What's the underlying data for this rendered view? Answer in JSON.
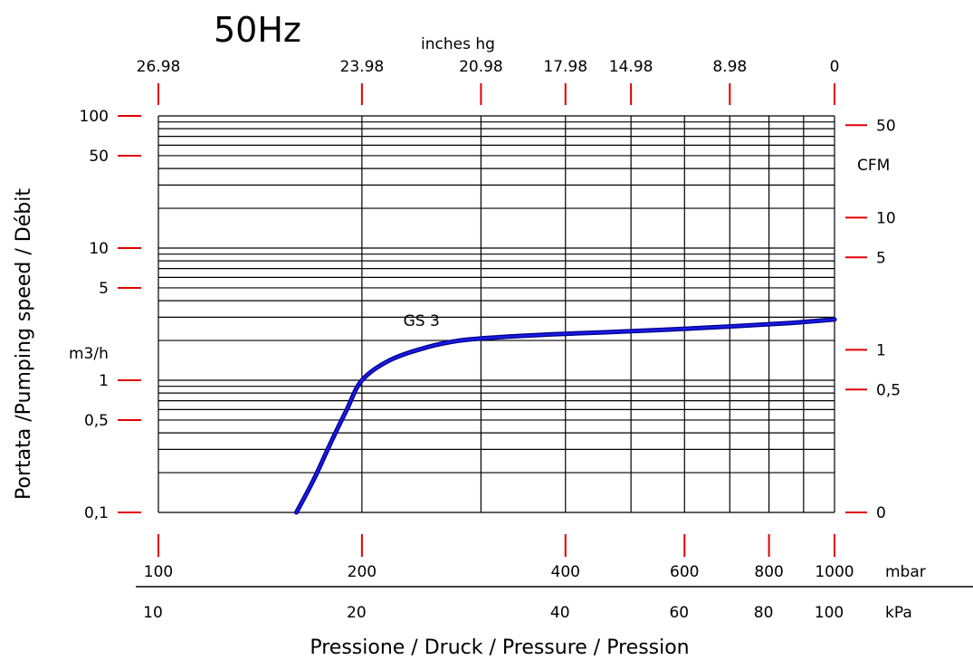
{
  "title": "50Hz",
  "chart_data": {
    "type": "line",
    "x_scale": "log",
    "y_scale": "log",
    "xlim": [
      100,
      1000
    ],
    "ylim": [
      0.1,
      100
    ],
    "grid": true,
    "series": [
      {
        "name": "GS 3",
        "x": [
          160,
          170,
          180,
          190,
          200,
          220,
          250,
          280,
          320,
          380,
          450,
          550,
          700,
          850,
          1000
        ],
        "y": [
          0.1,
          0.18,
          0.34,
          0.6,
          1.0,
          1.42,
          1.78,
          2.0,
          2.12,
          2.22,
          2.3,
          2.4,
          2.55,
          2.7,
          2.88
        ]
      }
    ],
    "axes": {
      "bottom_mbar": {
        "label": "mbar",
        "ticks": [
          {
            "value": 100,
            "label": "100"
          },
          {
            "value": 200,
            "label": "200"
          },
          {
            "value": 400,
            "label": "400"
          },
          {
            "value": 600,
            "label": "600"
          },
          {
            "value": 800,
            "label": "800"
          },
          {
            "value": 1000,
            "label": "1000"
          }
        ]
      },
      "bottom_kpa": {
        "label": "kPa",
        "ticks": [
          {
            "value": 100,
            "label": "10"
          },
          {
            "value": 200,
            "label": "20"
          },
          {
            "value": 400,
            "label": "40"
          },
          {
            "value": 600,
            "label": "60"
          },
          {
            "value": 800,
            "label": "80"
          },
          {
            "value": 1000,
            "label": "100"
          }
        ]
      },
      "top_inhg": {
        "label": "inches hg",
        "ticks": [
          {
            "value": 100,
            "label": "26.98"
          },
          {
            "value": 200,
            "label": "23.98"
          },
          {
            "value": 300,
            "label": "20.98"
          },
          {
            "value": 400,
            "label": "17.98"
          },
          {
            "value": 500,
            "label": "14.98"
          },
          {
            "value": 700,
            "label": "8.98"
          },
          {
            "value": 1000,
            "label": "0"
          }
        ]
      },
      "left_m3h": {
        "label": "m3/h",
        "ticks": [
          {
            "value": 100,
            "label": "100"
          },
          {
            "value": 50,
            "label": "50"
          },
          {
            "value": 10,
            "label": "10"
          },
          {
            "value": 5,
            "label": "5"
          },
          {
            "value": 1,
            "label": "1"
          },
          {
            "value": 0.5,
            "label": "0,5"
          },
          {
            "value": 0.1,
            "label": "0,1"
          }
        ]
      },
      "right_cfm": {
        "label": "CFM",
        "ticks": [
          {
            "value": 85,
            "label": "50"
          },
          {
            "value": 17,
            "label": "10"
          },
          {
            "value": 8.5,
            "label": "5"
          },
          {
            "value": 1.7,
            "label": "1"
          },
          {
            "value": 0.85,
            "label": "0,5"
          },
          {
            "value": 0.1,
            "label": "0"
          }
        ]
      }
    },
    "ylabel": "Portata /Pumping speed / Débit",
    "xlabel": "Pressione / Druck / Pressure / Pression",
    "colors": {
      "curve": "#1a1ae6",
      "ticks": "#e00000",
      "grid": "#000000"
    }
  }
}
